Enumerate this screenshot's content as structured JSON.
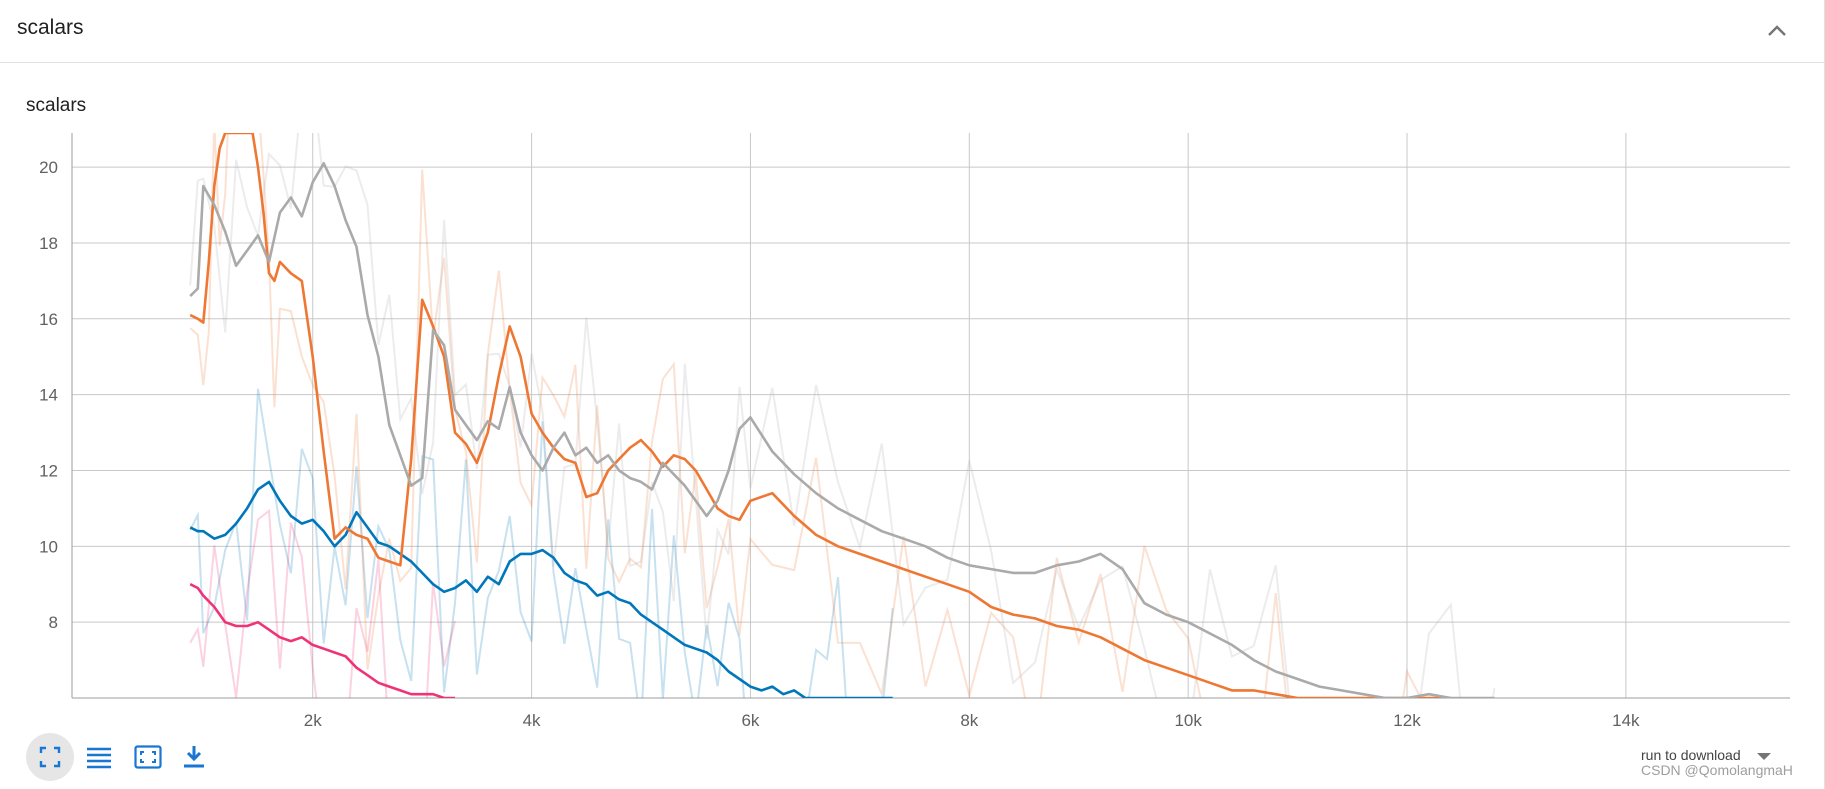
{
  "header": {
    "title": "scalars",
    "collapse_icon": "chevron-up-icon"
  },
  "card": {
    "title": "scalars"
  },
  "toolbar": {
    "buttons": [
      "fullscreen-icon",
      "list-icon",
      "fit-domain-icon",
      "download-icon"
    ]
  },
  "download": {
    "label": "run to download"
  },
  "watermark": "CSDN @QomolangmaH",
  "colors": {
    "grid": "#c8c8c8",
    "blue": "#0077bb",
    "orange": "#ee7733",
    "gray": "#aaaaaa",
    "magenta": "#ee3377"
  },
  "chart_data": {
    "type": "line",
    "title": "",
    "xlabel": "",
    "ylabel": "",
    "xlim": [
      -200,
      15500
    ],
    "ylim": [
      6,
      20.9
    ],
    "xticks": [
      2000,
      4000,
      6000,
      8000,
      10000,
      12000,
      14000
    ],
    "xtick_labels": [
      "2k",
      "4k",
      "6k",
      "8k",
      "10k",
      "12k",
      "14k"
    ],
    "yticks": [
      8,
      10,
      12,
      14,
      16,
      18,
      20
    ],
    "ytick_labels": [
      "8",
      "10",
      "12",
      "14",
      "16",
      "18",
      "20"
    ],
    "grid": true,
    "series": [
      {
        "color": "#0077bb",
        "x": [
          880,
          950,
          1000,
          1100,
          1200,
          1300,
          1400,
          1500,
          1600,
          1700,
          1800,
          1900,
          2000,
          2100,
          2200,
          2300,
          2400,
          2500,
          2600,
          2700,
          2800,
          2900,
          3000,
          3100,
          3200,
          3300,
          3400,
          3500,
          3600,
          3700,
          3800,
          3900,
          4000,
          4100,
          4200,
          4300,
          4400,
          4500,
          4600,
          4700,
          4800,
          4900,
          5000,
          5100,
          5200,
          5300,
          5400,
          5500,
          5600,
          5700,
          5800,
          5900,
          6000,
          6100,
          6200,
          6300,
          6400,
          6500,
          6600,
          6700,
          6800,
          6900,
          7000,
          7100,
          7200,
          7300
        ],
        "y": [
          10.5,
          10.4,
          10.4,
          10.2,
          10.3,
          10.6,
          11.0,
          11.5,
          11.7,
          11.2,
          10.8,
          10.6,
          10.7,
          10.4,
          10.0,
          10.3,
          10.9,
          10.5,
          10.1,
          10.0,
          9.8,
          9.6,
          9.3,
          9.0,
          8.8,
          8.9,
          9.1,
          8.8,
          9.2,
          9.0,
          9.6,
          9.8,
          9.8,
          9.9,
          9.7,
          9.3,
          9.1,
          9.0,
          8.7,
          8.8,
          8.6,
          8.5,
          8.2,
          8.0,
          7.8,
          7.6,
          7.4,
          7.3,
          7.2,
          7.0,
          6.7,
          6.5,
          6.3,
          6.2,
          6.3,
          6.1,
          6.2,
          6.0,
          6.0,
          6.0,
          6.0,
          6.0,
          6.0,
          6.0,
          6.0,
          6.0
        ]
      },
      {
        "color": "#ee7733",
        "x": [
          880,
          950,
          1000,
          1050,
          1100,
          1150,
          1200,
          1250,
          1300,
          1350,
          1400,
          1450,
          1500,
          1550,
          1600,
          1650,
          1700,
          1800,
          1900,
          2000,
          2100,
          2200,
          2300,
          2400,
          2500,
          2600,
          2700,
          2800,
          2900,
          3000,
          3100,
          3200,
          3300,
          3400,
          3500,
          3600,
          3700,
          3800,
          3900,
          4000,
          4100,
          4200,
          4300,
          4400,
          4500,
          4600,
          4700,
          4800,
          4900,
          5000,
          5100,
          5200,
          5300,
          5400,
          5500,
          5600,
          5700,
          5800,
          5900,
          6000,
          6200,
          6400,
          6600,
          6800,
          7000,
          7200,
          7400,
          7600,
          7800,
          8000,
          8200,
          8400,
          8600,
          8800,
          9000,
          9200,
          9400,
          9600,
          9800,
          10000,
          10200,
          10400,
          10600,
          10800,
          11000,
          11200,
          11400,
          11600,
          11800,
          12000,
          12200,
          12400
        ],
        "y": [
          16.1,
          16.0,
          15.9,
          17.5,
          19.5,
          20.5,
          20.9,
          20.9,
          20.9,
          20.9,
          20.9,
          20.9,
          20.0,
          18.8,
          17.2,
          17.0,
          17.5,
          17.2,
          17.0,
          15.0,
          12.5,
          10.2,
          10.5,
          10.3,
          10.2,
          9.7,
          9.6,
          9.5,
          12.3,
          16.5,
          15.8,
          15.0,
          13.0,
          12.7,
          12.2,
          13.0,
          14.5,
          15.8,
          15.0,
          13.5,
          13.0,
          12.6,
          12.3,
          12.2,
          11.3,
          11.4,
          12.0,
          12.3,
          12.6,
          12.8,
          12.5,
          12.1,
          12.4,
          12.3,
          12.0,
          11.5,
          11.0,
          10.8,
          10.7,
          11.2,
          11.4,
          10.8,
          10.3,
          10.0,
          9.8,
          9.6,
          9.4,
          9.2,
          9.0,
          8.8,
          8.4,
          8.2,
          8.1,
          7.9,
          7.8,
          7.6,
          7.3,
          7.0,
          6.8,
          6.6,
          6.4,
          6.2,
          6.2,
          6.1,
          6.0,
          6.0,
          6.0,
          6.0,
          6.0,
          6.0,
          6.0,
          6.0
        ]
      },
      {
        "color": "#aaaaaa",
        "x": [
          880,
          950,
          1000,
          1100,
          1200,
          1300,
          1400,
          1500,
          1600,
          1700,
          1800,
          1900,
          2000,
          2100,
          2200,
          2300,
          2400,
          2500,
          2600,
          2700,
          2800,
          2900,
          3000,
          3100,
          3200,
          3300,
          3400,
          3500,
          3600,
          3700,
          3800,
          3900,
          4000,
          4100,
          4200,
          4300,
          4400,
          4500,
          4600,
          4700,
          4800,
          4900,
          5000,
          5100,
          5200,
          5300,
          5400,
          5500,
          5600,
          5700,
          5800,
          5900,
          6000,
          6200,
          6400,
          6600,
          6800,
          7000,
          7200,
          7400,
          7600,
          7800,
          8000,
          8200,
          8400,
          8600,
          8800,
          9000,
          9200,
          9400,
          9600,
          9800,
          10000,
          10200,
          10400,
          10600,
          10800,
          11000,
          11200,
          11400,
          11600,
          11800,
          12000,
          12200,
          12400,
          12600,
          12800
        ],
        "y": [
          16.6,
          16.8,
          19.5,
          19.0,
          18.3,
          17.4,
          17.8,
          18.2,
          17.5,
          18.8,
          19.2,
          18.7,
          19.6,
          20.1,
          19.5,
          18.6,
          17.9,
          16.1,
          15.0,
          13.2,
          12.4,
          11.6,
          11.8,
          15.7,
          15.3,
          13.6,
          13.2,
          12.8,
          13.3,
          13.1,
          14.2,
          13.0,
          12.4,
          12.0,
          12.6,
          13.0,
          12.4,
          12.6,
          12.2,
          12.4,
          12.0,
          11.8,
          11.7,
          11.5,
          12.2,
          11.9,
          11.6,
          11.2,
          10.8,
          11.2,
          12.0,
          13.1,
          13.4,
          12.5,
          11.9,
          11.4,
          11.0,
          10.7,
          10.4,
          10.2,
          10.0,
          9.7,
          9.5,
          9.4,
          9.3,
          9.3,
          9.5,
          9.6,
          9.8,
          9.4,
          8.5,
          8.2,
          8.0,
          7.7,
          7.4,
          7.0,
          6.7,
          6.5,
          6.3,
          6.2,
          6.1,
          6.0,
          6.0,
          6.1,
          6.0,
          6.0,
          6.0
        ]
      },
      {
        "color": "#ee3377",
        "x": [
          880,
          950,
          1000,
          1100,
          1200,
          1300,
          1400,
          1500,
          1600,
          1700,
          1800,
          1900,
          2000,
          2100,
          2200,
          2300,
          2400,
          2500,
          2600,
          2700,
          2800,
          2900,
          3000,
          3100,
          3200,
          3300
        ],
        "y": [
          9.0,
          8.9,
          8.7,
          8.4,
          8.0,
          7.9,
          7.9,
          8.0,
          7.8,
          7.6,
          7.5,
          7.6,
          7.4,
          7.3,
          7.2,
          7.1,
          6.8,
          6.6,
          6.4,
          6.3,
          6.2,
          6.1,
          6.1,
          6.1,
          6.0,
          6.0
        ]
      }
    ]
  }
}
